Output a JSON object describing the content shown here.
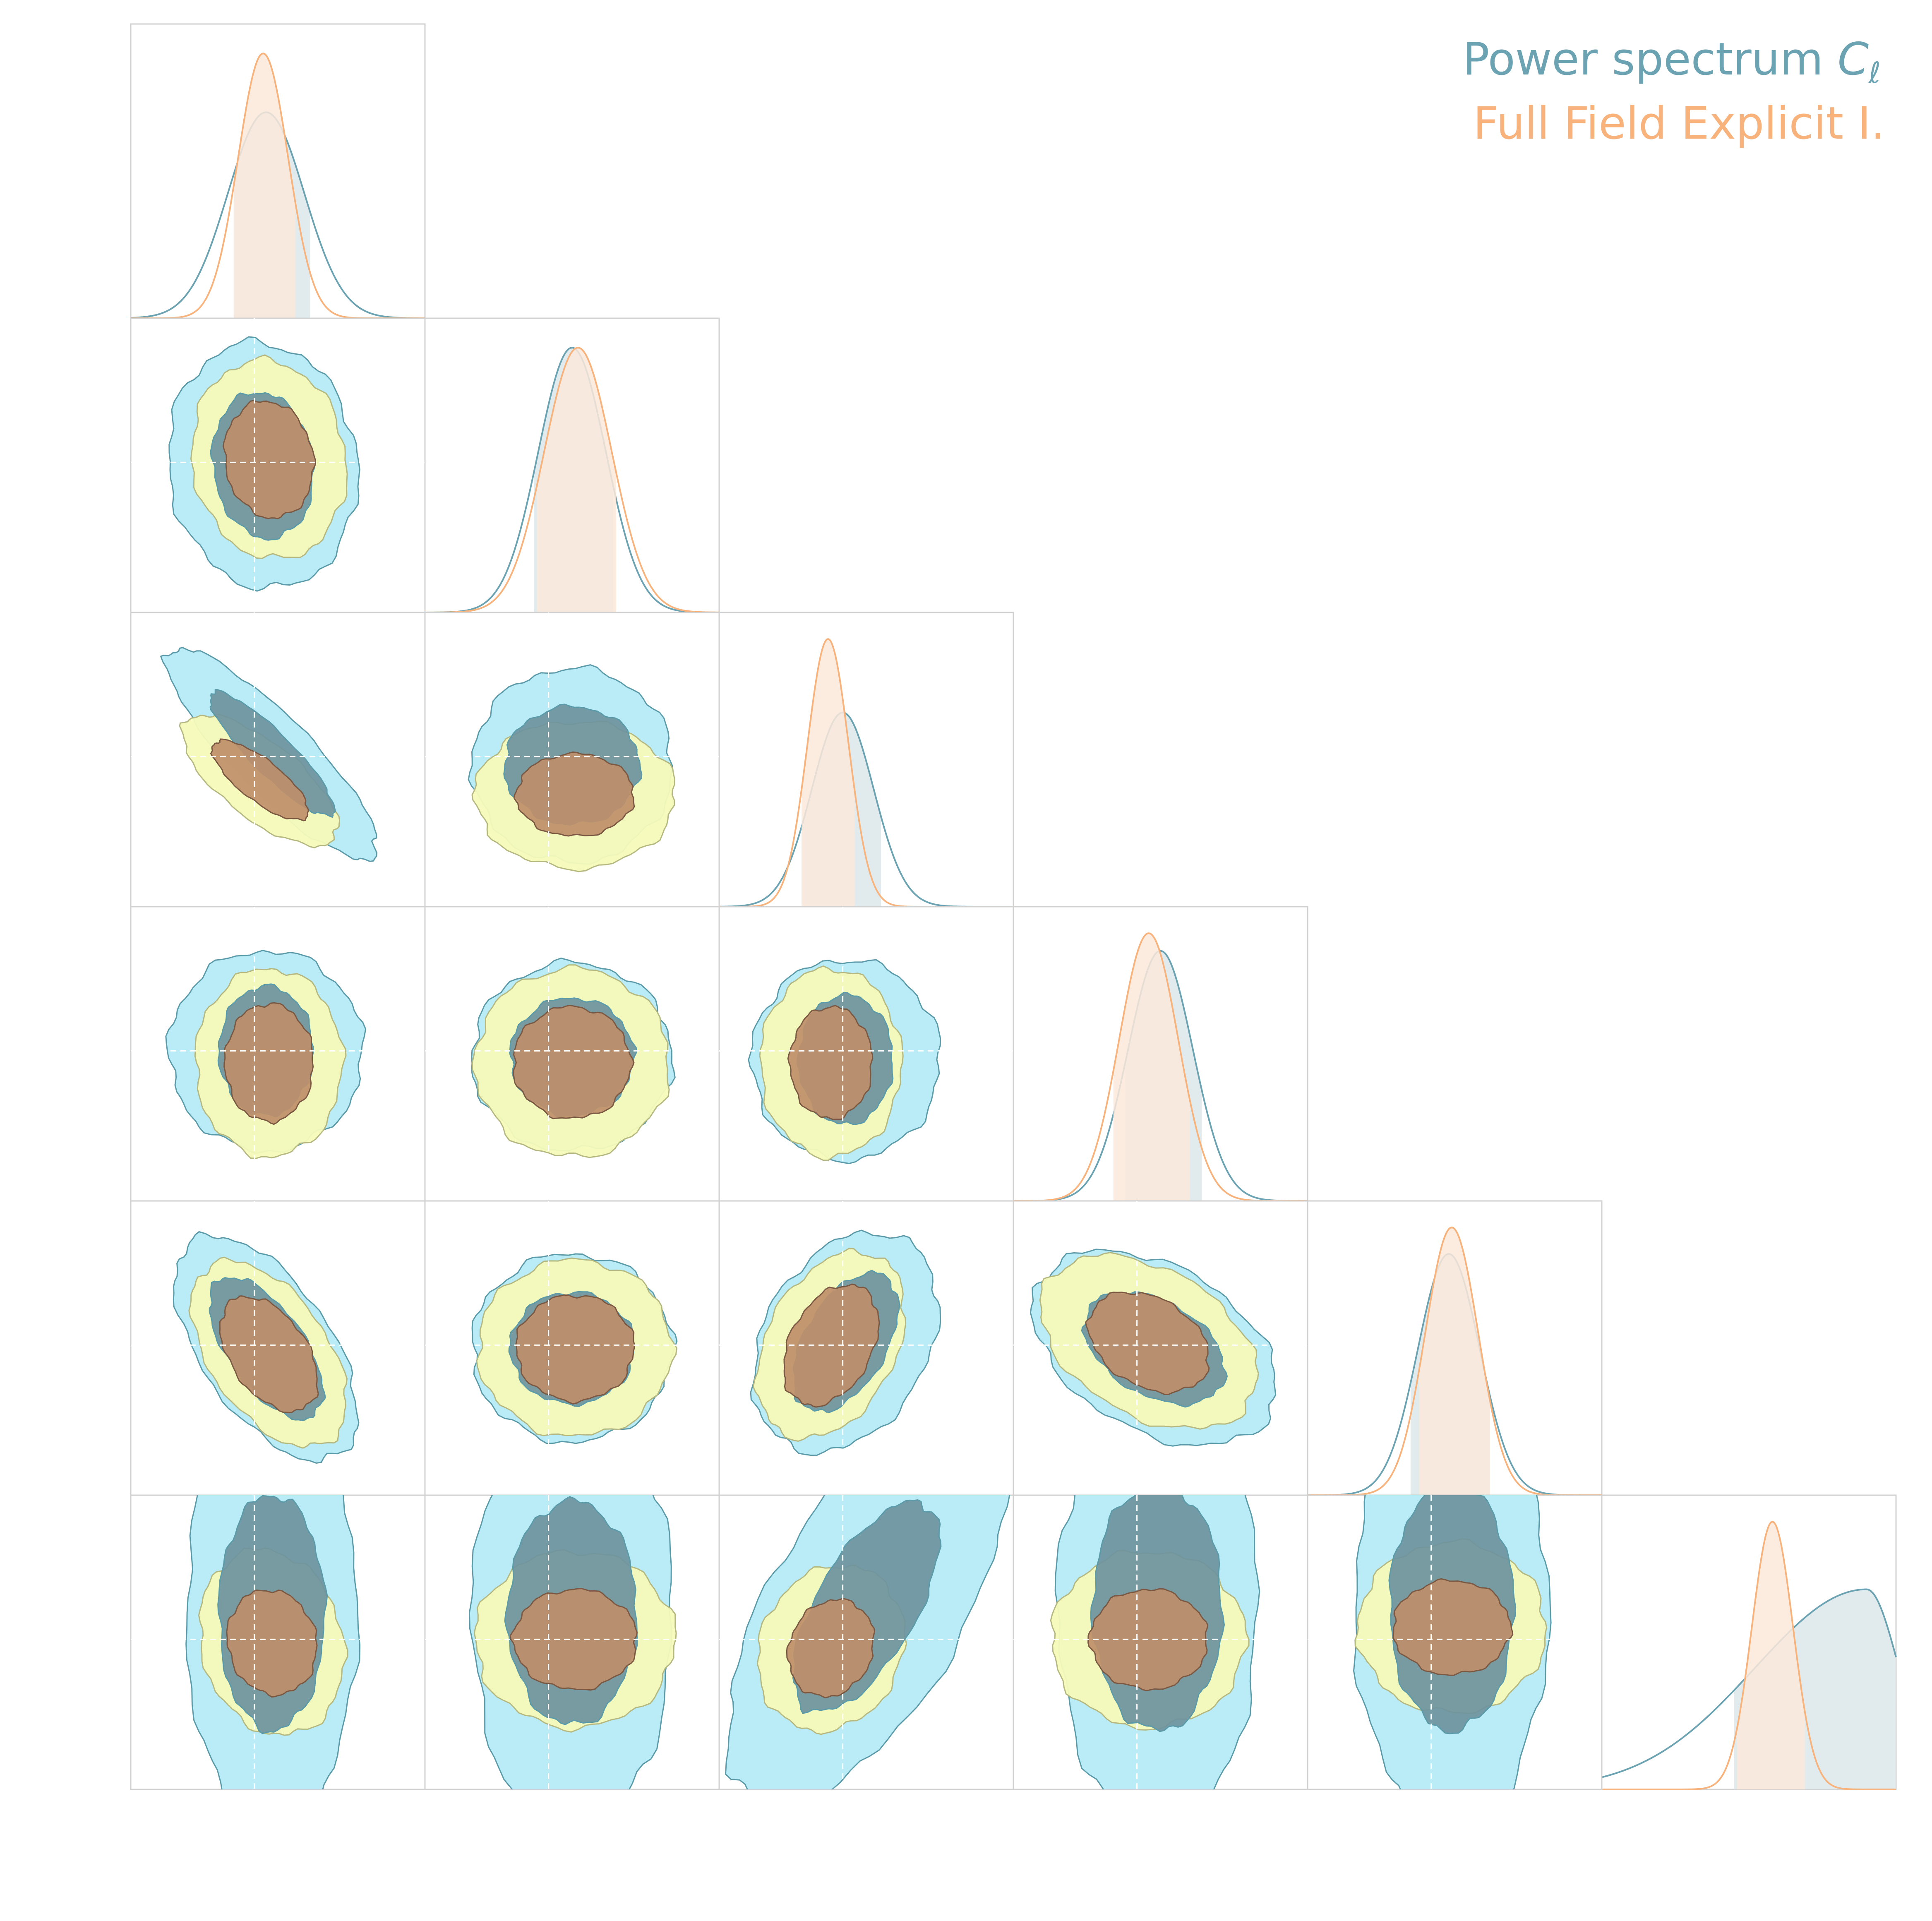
{
  "legend": {
    "entries": [
      {
        "label": "Power spectrum",
        "symbol": "C",
        "subscript": "ℓ",
        "color": "#6ba3b3"
      },
      {
        "label": "Full Field Explicit I.",
        "symbol": "",
        "subscript": "",
        "color": "#f8b37d"
      }
    ]
  },
  "colors": {
    "ps_line": "#6ba3b3",
    "ps_fill": "#dce7ea",
    "ps_contour_outer": "#b3eaf6",
    "ps_contour_inner": "#6e939e",
    "ff_line": "#f8b37d",
    "ff_fill": "#fce9db",
    "ff_contour_outer": "#f5fab8",
    "ff_contour_inner": "#bf8f6a",
    "panel_border": "#d0d0d0",
    "crosshair": "#ffffff"
  },
  "chart_data": {
    "type": "corner",
    "n_params": 6,
    "param_labels": [],
    "axis_tick_labels": "none",
    "fiducial_crosshairs": true,
    "grid": false,
    "legend_position": "top-right",
    "series": [
      {
        "name": "Power spectrum Cℓ",
        "color": "#6ba3b3",
        "marginals": [
          {
            "param": 1,
            "peak": 0.46,
            "width": 0.13,
            "interval": [
              0.35,
              0.61
            ],
            "height": 0.7
          },
          {
            "param": 2,
            "peak": 0.5,
            "width": 0.115,
            "interval": [
              0.37,
              0.64
            ],
            "height": 0.9
          },
          {
            "param": 3,
            "peak": 0.42,
            "width": 0.105,
            "interval": [
              0.28,
              0.55
            ],
            "height": 0.66
          },
          {
            "param": 4,
            "peak": 0.5,
            "width": 0.11,
            "interval": [
              0.38,
              0.64
            ],
            "height": 0.85
          },
          {
            "param": 5,
            "peak": 0.48,
            "width": 0.105,
            "interval": [
              0.35,
              0.62
            ],
            "height": 0.82
          },
          {
            "param": 6,
            "peak": 0.9,
            "width": 0.2,
            "interval": [
              0.45,
              1.0
            ],
            "height": 0.68,
            "skew": "left"
          }
        ],
        "contours_2d": [
          {
            "x": 1,
            "y": 2,
            "cx": 0.45,
            "cy": 0.5,
            "rx_inner": 0.17,
            "ry_inner": 0.25,
            "rx_outer": 0.32,
            "ry_outer": 0.42,
            "rotation": -8
          },
          {
            "x": 1,
            "y": 3,
            "cx": 0.48,
            "cy": 0.48,
            "rx_inner": 0.07,
            "ry_inner": 0.29,
            "rx_outer": 0.13,
            "ry_outer": 0.49,
            "rotation": -45
          },
          {
            "x": 2,
            "y": 3,
            "cx": 0.5,
            "cy": 0.52,
            "rx_inner": 0.23,
            "ry_inner": 0.2,
            "rx_outer": 0.34,
            "ry_outer": 0.33,
            "rotation": 0
          },
          {
            "x": 1,
            "y": 4,
            "cx": 0.46,
            "cy": 0.49,
            "rx_inner": 0.16,
            "ry_inner": 0.22,
            "rx_outer": 0.33,
            "ry_outer": 0.34,
            "rotation": 0
          },
          {
            "x": 2,
            "y": 4,
            "cx": 0.5,
            "cy": 0.51,
            "rx_inner": 0.21,
            "ry_inner": 0.2,
            "rx_outer": 0.34,
            "ry_outer": 0.32,
            "rotation": 0
          },
          {
            "x": 3,
            "y": 4,
            "cx": 0.43,
            "cy": 0.52,
            "rx_inner": 0.16,
            "ry_inner": 0.22,
            "rx_outer": 0.32,
            "ry_outer": 0.34,
            "rotation": 0
          },
          {
            "x": 1,
            "y": 5,
            "cx": 0.46,
            "cy": 0.5,
            "rx_inner": 0.13,
            "ry_inner": 0.28,
            "rx_outer": 0.22,
            "ry_outer": 0.44,
            "rotation": -35
          },
          {
            "x": 2,
            "y": 5,
            "cx": 0.5,
            "cy": 0.5,
            "rx_inner": 0.21,
            "ry_inner": 0.19,
            "rx_outer": 0.34,
            "ry_outer": 0.32,
            "rotation": 0
          },
          {
            "x": 3,
            "y": 5,
            "cx": 0.43,
            "cy": 0.48,
            "rx_inner": 0.14,
            "ry_inner": 0.26,
            "rx_outer": 0.28,
            "ry_outer": 0.4,
            "rotation": 30
          },
          {
            "x": 4,
            "y": 5,
            "cx": 0.48,
            "cy": 0.5,
            "rx_inner": 0.16,
            "ry_inner": 0.26,
            "rx_outer": 0.28,
            "ry_outer": 0.45,
            "rotation": -60
          },
          {
            "x": 1,
            "y": 6,
            "cx": 0.48,
            "cy": 0.4,
            "rx_inner": 0.18,
            "ry_inner": 0.4,
            "rx_outer": 0.29,
            "ry_outer": 0.75,
            "rotation": 0
          },
          {
            "x": 2,
            "y": 6,
            "cx": 0.5,
            "cy": 0.4,
            "rx_inner": 0.22,
            "ry_inner": 0.38,
            "rx_outer": 0.34,
            "ry_outer": 0.75,
            "rotation": 0
          },
          {
            "x": 3,
            "y": 6,
            "cx": 0.5,
            "cy": 0.38,
            "rx_inner": 0.17,
            "ry_inner": 0.4,
            "rx_outer": 0.33,
            "ry_outer": 0.75,
            "rotation": 30
          },
          {
            "x": 4,
            "y": 6,
            "cx": 0.49,
            "cy": 0.38,
            "rx_inner": 0.22,
            "ry_inner": 0.42,
            "rx_outer": 0.34,
            "ry_outer": 0.75,
            "rotation": 0
          },
          {
            "x": 5,
            "y": 6,
            "cx": 0.49,
            "cy": 0.38,
            "rx_inner": 0.21,
            "ry_inner": 0.42,
            "rx_outer": 0.33,
            "ry_outer": 0.75,
            "rotation": 0
          }
        ]
      },
      {
        "name": "Full Field Explicit I.",
        "color": "#f8b37d",
        "marginals": [
          {
            "param": 1,
            "peak": 0.45,
            "width": 0.085,
            "interval": [
              0.35,
              0.56
            ],
            "height": 0.9
          },
          {
            "param": 2,
            "peak": 0.52,
            "width": 0.115,
            "interval": [
              0.38,
              0.65
            ],
            "height": 0.9
          },
          {
            "param": 3,
            "peak": 0.37,
            "width": 0.07,
            "interval": [
              0.28,
              0.46
            ],
            "height": 0.91
          },
          {
            "param": 4,
            "peak": 0.46,
            "width": 0.1,
            "interval": [
              0.34,
              0.6
            ],
            "height": 0.91
          },
          {
            "param": 5,
            "peak": 0.49,
            "width": 0.09,
            "interval": [
              0.38,
              0.62
            ],
            "height": 0.91
          },
          {
            "param": 6,
            "peak": 0.58,
            "width": 0.07,
            "interval": [
              0.46,
              0.69
            ],
            "height": 0.91
          }
        ],
        "contours_2d": [
          {
            "x": 1,
            "y": 2,
            "cx": 0.47,
            "cy": 0.48,
            "rx_inner": 0.15,
            "ry_inner": 0.2,
            "rx_outer": 0.26,
            "ry_outer": 0.34,
            "rotation": -10
          },
          {
            "x": 1,
            "y": 3,
            "cx": 0.44,
            "cy": 0.57,
            "rx_inner": 0.07,
            "ry_inner": 0.2,
            "rx_outer": 0.13,
            "ry_outer": 0.32,
            "rotation": -52
          },
          {
            "x": 2,
            "y": 3,
            "cx": 0.51,
            "cy": 0.62,
            "rx_inner": 0.2,
            "ry_inner": 0.14,
            "rx_outer": 0.34,
            "ry_outer": 0.25,
            "rotation": 0
          },
          {
            "x": 1,
            "y": 4,
            "cx": 0.47,
            "cy": 0.53,
            "rx_inner": 0.15,
            "ry_inner": 0.2,
            "rx_outer": 0.25,
            "ry_outer": 0.32,
            "rotation": 0
          },
          {
            "x": 2,
            "y": 4,
            "cx": 0.5,
            "cy": 0.53,
            "rx_inner": 0.2,
            "ry_inner": 0.19,
            "rx_outer": 0.33,
            "ry_outer": 0.32,
            "rotation": 0
          },
          {
            "x": 3,
            "y": 4,
            "cx": 0.38,
            "cy": 0.53,
            "rx_inner": 0.14,
            "ry_inner": 0.19,
            "rx_outer": 0.24,
            "ry_outer": 0.32,
            "rotation": 0
          },
          {
            "x": 1,
            "y": 5,
            "cx": 0.47,
            "cy": 0.52,
            "rx_inner": 0.13,
            "ry_inner": 0.22,
            "rx_outer": 0.2,
            "ry_outer": 0.36,
            "rotation": -35
          },
          {
            "x": 2,
            "y": 5,
            "cx": 0.51,
            "cy": 0.5,
            "rx_inner": 0.2,
            "ry_inner": 0.18,
            "rx_outer": 0.33,
            "ry_outer": 0.3,
            "rotation": 0
          },
          {
            "x": 3,
            "y": 5,
            "cx": 0.38,
            "cy": 0.49,
            "rx_inner": 0.14,
            "ry_inner": 0.22,
            "rx_outer": 0.22,
            "ry_outer": 0.34,
            "rotation": 28
          },
          {
            "x": 4,
            "y": 5,
            "cx": 0.46,
            "cy": 0.48,
            "rx_inner": 0.15,
            "ry_inner": 0.22,
            "rx_outer": 0.25,
            "ry_outer": 0.4,
            "rotation": -60
          },
          {
            "x": 1,
            "y": 6,
            "cx": 0.48,
            "cy": 0.5,
            "rx_inner": 0.15,
            "ry_inner": 0.18,
            "rx_outer": 0.24,
            "ry_outer": 0.32,
            "rotation": -15
          },
          {
            "x": 2,
            "y": 6,
            "cx": 0.51,
            "cy": 0.49,
            "rx_inner": 0.21,
            "ry_inner": 0.17,
            "rx_outer": 0.34,
            "ry_outer": 0.3,
            "rotation": 0
          },
          {
            "x": 3,
            "y": 6,
            "cx": 0.38,
            "cy": 0.52,
            "rx_inner": 0.14,
            "ry_inner": 0.17,
            "rx_outer": 0.24,
            "ry_outer": 0.29,
            "rotation": 25
          },
          {
            "x": 4,
            "y": 6,
            "cx": 0.46,
            "cy": 0.49,
            "rx_inner": 0.2,
            "ry_inner": 0.17,
            "rx_outer": 0.33,
            "ry_outer": 0.3,
            "rotation": 0
          },
          {
            "x": 5,
            "y": 6,
            "cx": 0.49,
            "cy": 0.45,
            "rx_inner": 0.2,
            "ry_inner": 0.16,
            "rx_outer": 0.32,
            "ry_outer": 0.29,
            "rotation": 0
          }
        ]
      }
    ]
  }
}
